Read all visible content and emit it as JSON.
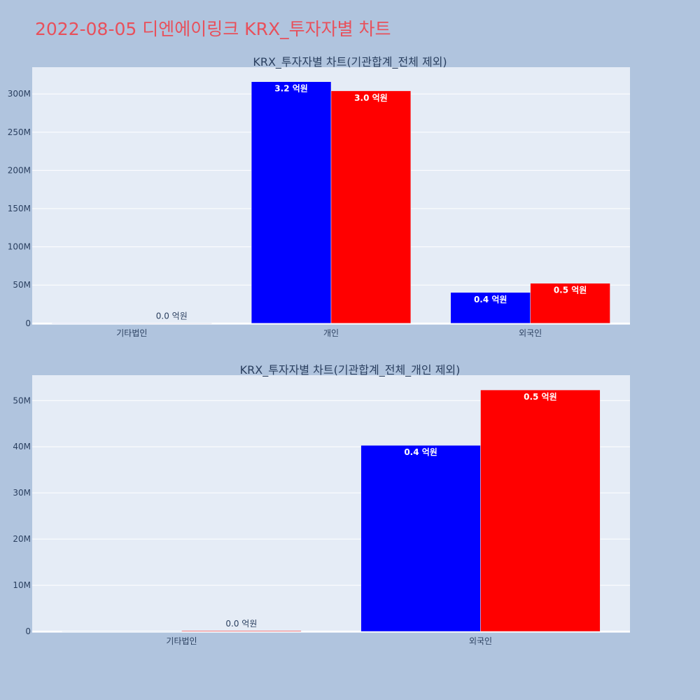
{
  "page_title": "2022-08-05 디엔에이링크 KRX_투자자별 차트",
  "colors": {
    "background": "#b0c4de",
    "plot_bg": "#e5ecf6",
    "title": "#e8505b",
    "series_a": "#0000ff",
    "series_b": "#ff0000",
    "text": "#2a3f5f"
  },
  "chart_data": [
    {
      "type": "bar",
      "title": "KRX_투자자별 차트(기관합계_전체 제외)",
      "categories": [
        "기타법인",
        "개인",
        "외국인"
      ],
      "series": [
        {
          "color": "#0000ff",
          "values": [
            0,
            316000000,
            40300000
          ],
          "labels": [
            "",
            "3.2 억원",
            "0.4 억원"
          ]
        },
        {
          "color": "#ff0000",
          "values": [
            150000,
            304000000,
            52300000
          ],
          "labels": [
            "0.0 억원",
            "3.0 억원",
            "0.5 억원"
          ]
        }
      ],
      "yticks": [
        0,
        50000000,
        100000000,
        150000000,
        200000000,
        250000000,
        300000000
      ],
      "ytick_labels": [
        "0",
        "50M",
        "100M",
        "150M",
        "200M",
        "250M",
        "300M"
      ],
      "ylim": [
        -2000000,
        335000000
      ],
      "grid": true
    },
    {
      "type": "bar",
      "title": "KRX_투자자별 차트(기관합계_전체_개인 제외)",
      "categories": [
        "기타법인",
        "외국인"
      ],
      "series": [
        {
          "color": "#0000ff",
          "values": [
            0,
            40300000
          ],
          "labels": [
            "",
            "0.4 억원"
          ]
        },
        {
          "color": "#ff0000",
          "values": [
            150000,
            52300000
          ],
          "labels": [
            "0.0 억원",
            "0.5 억원"
          ]
        }
      ],
      "yticks": [
        0,
        10000000,
        20000000,
        30000000,
        40000000,
        50000000
      ],
      "ytick_labels": [
        "0",
        "10M",
        "20M",
        "30M",
        "40M",
        "50M"
      ],
      "ylim": [
        -300000,
        55500000
      ],
      "grid": true
    }
  ]
}
